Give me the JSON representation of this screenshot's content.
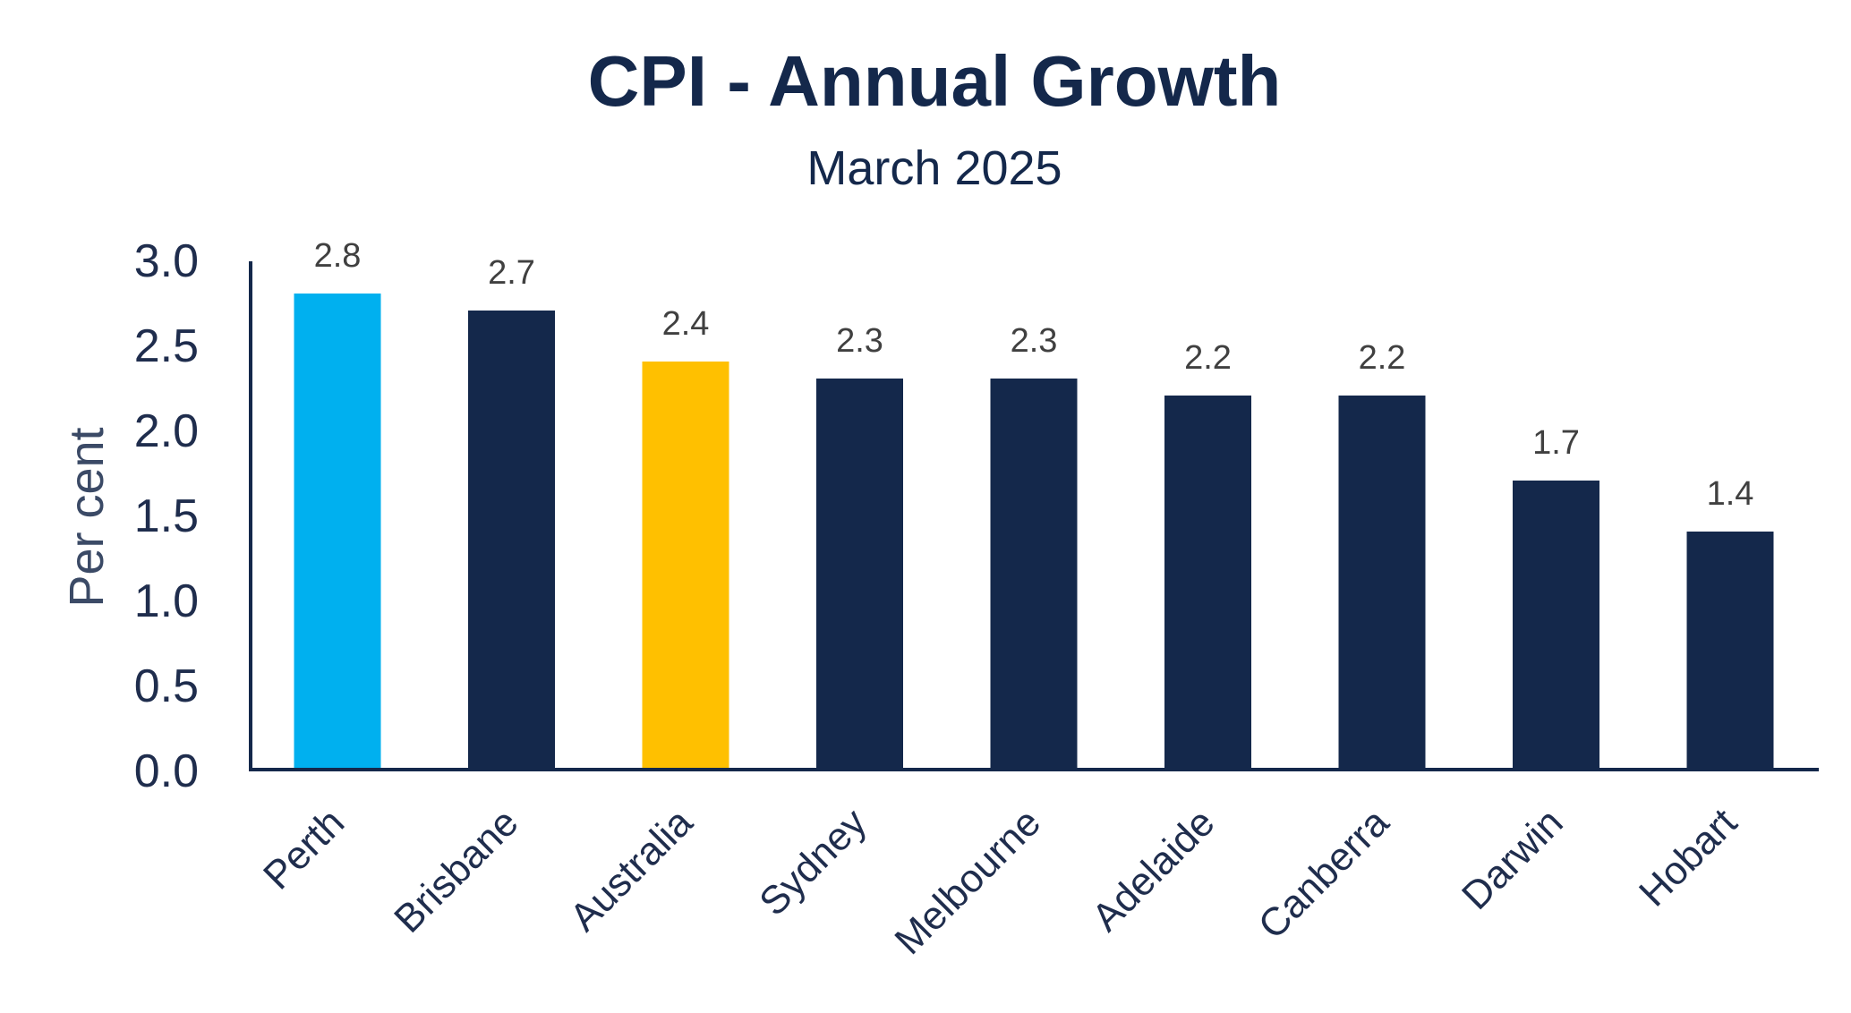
{
  "chart_data": {
    "type": "bar",
    "title": "CPI - Annual Growth",
    "subtitle": "March 2025",
    "ylabel": "Per cent",
    "xlabel": "",
    "ylim": [
      0,
      3.0
    ],
    "y_ticks": [
      "0.0",
      "0.5",
      "1.0",
      "1.5",
      "2.0",
      "2.5",
      "3.0"
    ],
    "categories": [
      "Perth",
      "Brisbane",
      "Australia",
      "Sydney",
      "Melbourne",
      "Adelaide",
      "Canberra",
      "Darwin",
      "Hobart"
    ],
    "values": [
      2.8,
      2.7,
      2.4,
      2.3,
      2.3,
      2.2,
      2.2,
      1.7,
      1.4
    ],
    "value_labels": [
      "2.8",
      "2.7",
      "2.4",
      "2.3",
      "2.3",
      "2.2",
      "2.2",
      "1.7",
      "1.4"
    ],
    "bar_colors": [
      "#00B0EF",
      "#14284B",
      "#FFC000",
      "#14284B",
      "#14284B",
      "#14284B",
      "#14284B",
      "#14284B",
      "#14284B"
    ],
    "colors": {
      "title": "#14284B",
      "axis": "#14284B",
      "tick_label": "#1F2D4D",
      "value_label": "#404040",
      "ylabel": "#3B4A66"
    },
    "grid": false,
    "legend": "none"
  }
}
